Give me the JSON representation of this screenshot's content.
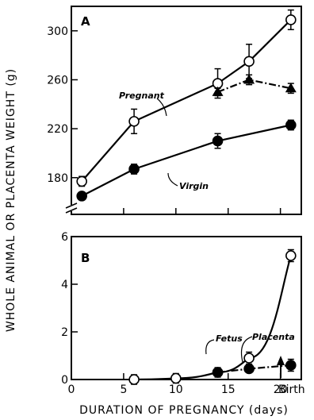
{
  "figure": {
    "xlabel": "DURATION OF PREGNANCY (days)",
    "ylabel": "WHOLE ANIMAL OR PLACENTA WEIGHT (g)",
    "x_ticks": [
      "0",
      "5",
      "10",
      "15",
      "20"
    ],
    "x_end_label": "Birth"
  },
  "chart_data": [
    {
      "panel": "A",
      "type": "line",
      "xlim": [
        0,
        22
      ],
      "ylim": [
        150,
        320
      ],
      "y_axis_break": true,
      "y_ticks": [
        "180",
        "220",
        "260",
        "300"
      ],
      "annotations": [
        "Pregnant",
        "Virgin"
      ],
      "series": [
        {
          "name": "Pregnant",
          "marker": "open-circle",
          "line": "solid",
          "x": [
            1,
            6,
            14,
            17,
            21
          ],
          "y": [
            177,
            226,
            257,
            275,
            309
          ],
          "err": [
            4,
            10,
            12,
            14,
            8
          ]
        },
        {
          "marker": "filled-triangle",
          "line": "dash-dot",
          "x": [
            14,
            17,
            21
          ],
          "y": [
            250,
            260,
            253
          ],
          "err": [
            3,
            4,
            4
          ]
        },
        {
          "name": "Virgin",
          "marker": "filled-circle",
          "line": "solid",
          "x": [
            1,
            6,
            14,
            21
          ],
          "y": [
            165,
            187,
            210,
            223
          ],
          "err": [
            3,
            4,
            6,
            4
          ]
        }
      ]
    },
    {
      "panel": "B",
      "type": "line",
      "xlim": [
        0,
        22
      ],
      "ylim": [
        0,
        6
      ],
      "y_ticks": [
        "0",
        "2",
        "4",
        "6"
      ],
      "annotations": [
        "Fetus",
        "Placenta"
      ],
      "birth_marker_x": 22,
      "series": [
        {
          "name": "Fetus",
          "marker": "open-circle",
          "line": "solid",
          "x": [
            6,
            10,
            14,
            17,
            21
          ],
          "y": [
            0.0,
            0.05,
            0.3,
            0.9,
            5.2
          ],
          "err": [
            0.2,
            0.2,
            0.2,
            0.25,
            0.25
          ]
        },
        {
          "name": "Placenta",
          "marker": "filled-circle",
          "line": "dash-dot",
          "x": [
            14,
            17,
            21
          ],
          "y": [
            0.3,
            0.45,
            0.6
          ],
          "err": [
            0.1,
            0.15,
            0.25
          ]
        }
      ]
    }
  ]
}
